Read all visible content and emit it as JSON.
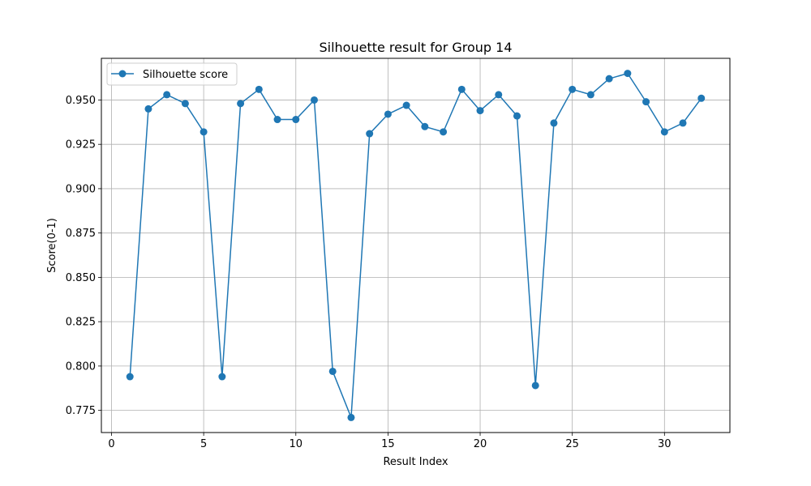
{
  "chart_data": {
    "type": "line",
    "title": "Silhouette result for Group 14",
    "xlabel": "Result Index",
    "ylabel": "Score(0-1)",
    "xlim": [
      -0.55,
      33.55
    ],
    "ylim": [
      0.7625,
      0.9735
    ],
    "x_ticks": [
      0,
      5,
      10,
      15,
      20,
      25,
      30
    ],
    "x_tick_labels": [
      "0",
      "5",
      "10",
      "15",
      "20",
      "25",
      "30"
    ],
    "y_ticks": [
      0.775,
      0.8,
      0.825,
      0.85,
      0.875,
      0.9,
      0.925,
      0.95
    ],
    "y_tick_labels": [
      "0.775",
      "0.800",
      "0.825",
      "0.850",
      "0.875",
      "0.900",
      "0.925",
      "0.950"
    ],
    "grid": true,
    "legend_position": "top-left",
    "series": [
      {
        "name": "Silhouette score",
        "color": "#1f77b4",
        "marker": "circle",
        "x": [
          1,
          2,
          3,
          4,
          5,
          6,
          7,
          8,
          9,
          10,
          11,
          12,
          13,
          14,
          15,
          16,
          17,
          18,
          19,
          20,
          21,
          22,
          23,
          24,
          25,
          26,
          27,
          28,
          29,
          30,
          31,
          32
        ],
        "y": [
          0.794,
          0.945,
          0.953,
          0.948,
          0.932,
          0.794,
          0.948,
          0.956,
          0.939,
          0.939,
          0.95,
          0.797,
          0.771,
          0.931,
          0.942,
          0.947,
          0.935,
          0.932,
          0.956,
          0.944,
          0.953,
          0.941,
          0.789,
          0.937,
          0.956,
          0.953,
          0.962,
          0.965,
          0.949,
          0.932,
          0.937,
          0.951
        ]
      }
    ]
  }
}
